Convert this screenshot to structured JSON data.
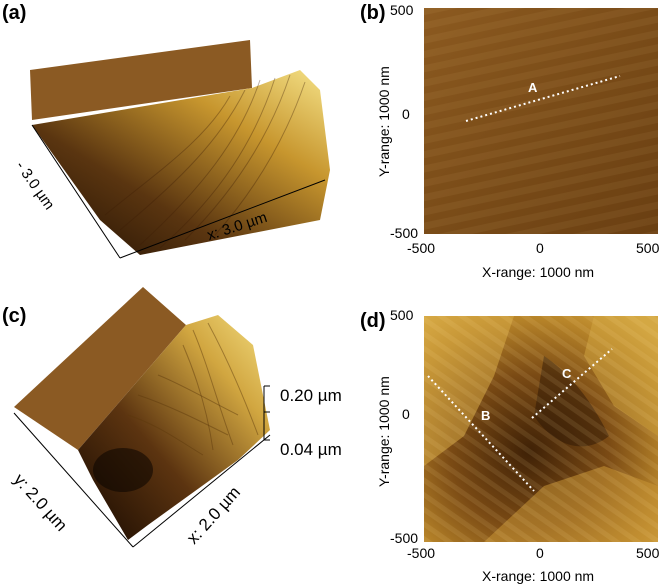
{
  "panels": {
    "a": {
      "label": "(a)",
      "axis_y": "- 3.0 µm",
      "axis_x": "x: 3.0 µm"
    },
    "b": {
      "label": "(b)",
      "y_ticks": [
        "500",
        "0",
        "-500"
      ],
      "x_ticks": [
        "-500",
        "0",
        "500"
      ],
      "ylabel": "Y-range: 1000 nm",
      "xlabel": "X-range: 1000 nm",
      "marker": "A"
    },
    "c": {
      "label": "(c)",
      "axis_y": "y: 2.0 µm",
      "axis_x": "x: 2.0 µm",
      "z_top": "0.20 µm",
      "z_bottom": "0.04 µm"
    },
    "d": {
      "label": "(d)",
      "y_ticks": [
        "500",
        "0",
        "-500"
      ],
      "x_ticks": [
        "-500",
        "0",
        "500"
      ],
      "ylabel": "Y-range: 1000 nm",
      "xlabel": "X-range: 1000 nm",
      "markers": [
        "B",
        "C"
      ]
    }
  },
  "colors": {
    "afm_dark": "#3a1f05",
    "afm_mid": "#8a5a1a",
    "afm_light": "#f2dc6a",
    "plateau": "#8b5a23"
  }
}
